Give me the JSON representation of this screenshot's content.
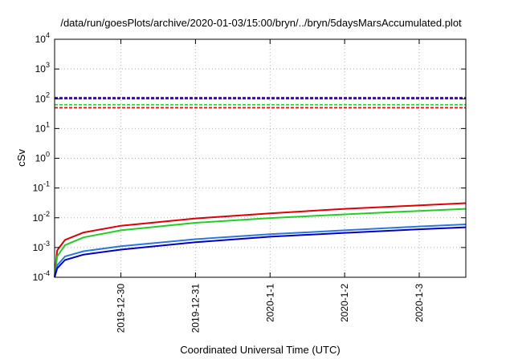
{
  "chart_data": {
    "type": "line",
    "title": "/data/run/goesPlots/archive/2020-01-03/15:00/bryn/../bryn/5daysMarsAccumulated.plot",
    "xlabel": "Coordinated Universal Time (UTC)",
    "ylabel": "cSv",
    "yscale": "log",
    "ylim": [
      0.0001,
      10000
    ],
    "xlim": [
      "2019-12-29 02:40",
      "2020-01-03 15:00"
    ],
    "grid": true,
    "x_ticks": [
      "2019-12-30",
      "2019-12-31",
      "2020-1-1",
      "2020-1-2",
      "2020-1-3"
    ],
    "y_ticks": [
      {
        "value": 0.0001,
        "base": "10",
        "exp": "-4"
      },
      {
        "value": 0.001,
        "base": "10",
        "exp": "-3"
      },
      {
        "value": 0.01,
        "base": "10",
        "exp": "-2"
      },
      {
        "value": 0.1,
        "base": "10",
        "exp": "-1"
      },
      {
        "value": 1,
        "base": "10",
        "exp": "0"
      },
      {
        "value": 10,
        "base": "10",
        "exp": "1"
      },
      {
        "value": 100,
        "base": "10",
        "exp": "2"
      },
      {
        "value": 1000,
        "base": "10",
        "exp": "3"
      },
      {
        "value": 10000,
        "base": "10",
        "exp": "4"
      }
    ],
    "reference_lines": [
      {
        "y": 110,
        "color": "#7a00c8"
      },
      {
        "y": 100,
        "color": "#1010ff"
      },
      {
        "y": 63,
        "color": "#20d020"
      },
      {
        "y": 50,
        "color": "#e00000"
      }
    ],
    "series": [
      {
        "color": "#e00000",
        "x": [
          "2019-12-29 02:40",
          "2019-12-29 03:30",
          "2019-12-29 06:00",
          "2019-12-29 12:00",
          "2019-12-30 00:00",
          "2019-12-31 00:00",
          "2020-01-01 00:00",
          "2020-01-02 00:00",
          "2020-01-03 00:00",
          "2020-01-03 15:00"
        ],
        "y": [
          0.0001,
          0.0008,
          0.0018,
          0.0032,
          0.0054,
          0.0095,
          0.014,
          0.02,
          0.026,
          0.031
        ]
      },
      {
        "color": "#20d020",
        "x": [
          "2019-12-29 02:40",
          "2019-12-29 03:30",
          "2019-12-29 06:00",
          "2019-12-29 12:00",
          "2019-12-30 00:00",
          "2019-12-31 00:00",
          "2020-01-01 00:00",
          "2020-01-02 00:00",
          "2020-01-03 00:00",
          "2020-01-03 15:00"
        ],
        "y": [
          0.0001,
          0.0005,
          0.0012,
          0.0022,
          0.0038,
          0.0068,
          0.0098,
          0.013,
          0.017,
          0.02
        ]
      },
      {
        "color": "#2878e0",
        "x": [
          "2019-12-29 02:40",
          "2019-12-29 03:30",
          "2019-12-29 06:00",
          "2019-12-29 12:00",
          "2019-12-30 00:00",
          "2019-12-31 00:00",
          "2020-01-01 00:00",
          "2020-01-02 00:00",
          "2020-01-03 00:00",
          "2020-01-03 15:00"
        ],
        "y": [
          0.0001,
          0.00025,
          0.0005,
          0.00075,
          0.0011,
          0.0019,
          0.0028,
          0.0038,
          0.0051,
          0.006
        ]
      },
      {
        "color": "#0000c8",
        "x": [
          "2019-12-29 02:40",
          "2019-12-29 03:30",
          "2019-12-29 06:00",
          "2019-12-29 12:00",
          "2019-12-30 00:00",
          "2019-12-31 00:00",
          "2020-01-01 00:00",
          "2020-01-02 00:00",
          "2020-01-03 00:00",
          "2020-01-03 15:00"
        ],
        "y": [
          0.0001,
          0.0002,
          0.00038,
          0.00058,
          0.00085,
          0.0015,
          0.0023,
          0.0031,
          0.0041,
          0.0048
        ]
      }
    ]
  }
}
